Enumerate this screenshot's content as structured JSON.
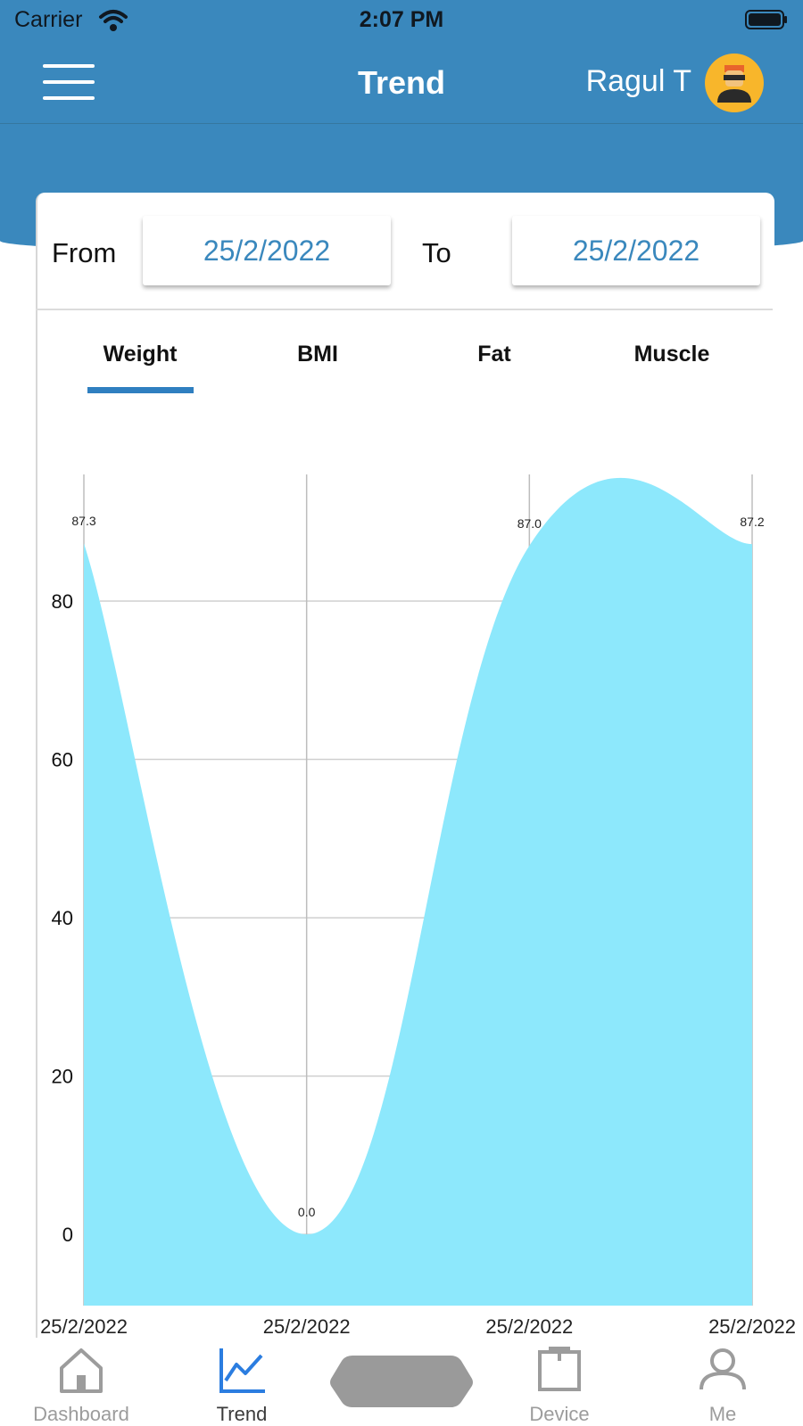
{
  "status_bar": {
    "carrier": "Carrier",
    "time": "2:07 PM"
  },
  "header": {
    "title": "Trend",
    "user_name": "Ragul T"
  },
  "filter": {
    "from_label": "From",
    "from_value": "25/2/2022",
    "to_label": "To",
    "to_value": "25/2/2022"
  },
  "tabs": [
    {
      "label": "Weight",
      "active": true
    },
    {
      "label": "BMI",
      "active": false
    },
    {
      "label": "Fat",
      "active": false
    },
    {
      "label": "Muscle",
      "active": false
    }
  ],
  "chart_data": {
    "type": "area",
    "x": [
      "25/2/2022",
      "25/2/2022",
      "25/2/2022",
      "25/2/2022"
    ],
    "values": [
      87.3,
      0.0,
      87.0,
      87.2
    ],
    "point_labels": [
      "87.3",
      "0.0",
      "87.0",
      "87.2"
    ],
    "yticks": [
      0,
      20,
      40,
      60,
      80
    ],
    "ylim": [
      -9,
      96
    ],
    "grid": true,
    "fill_color": "#8de8fc"
  },
  "bottom_nav": [
    {
      "label": "Dashboard",
      "icon": "home-icon",
      "active": false
    },
    {
      "label": "Trend",
      "icon": "trend-icon",
      "active": true
    },
    {
      "label": "",
      "icon": "scale-icon",
      "active": false
    },
    {
      "label": "Device",
      "icon": "device-icon",
      "active": false
    },
    {
      "label": "Me",
      "icon": "person-icon",
      "active": false
    }
  ],
  "colors": {
    "primary": "#3a88bd",
    "active_tab": "#2f7fc0",
    "nav_active": "#2b7de0",
    "nav_inactive": "#9c9c9c"
  }
}
